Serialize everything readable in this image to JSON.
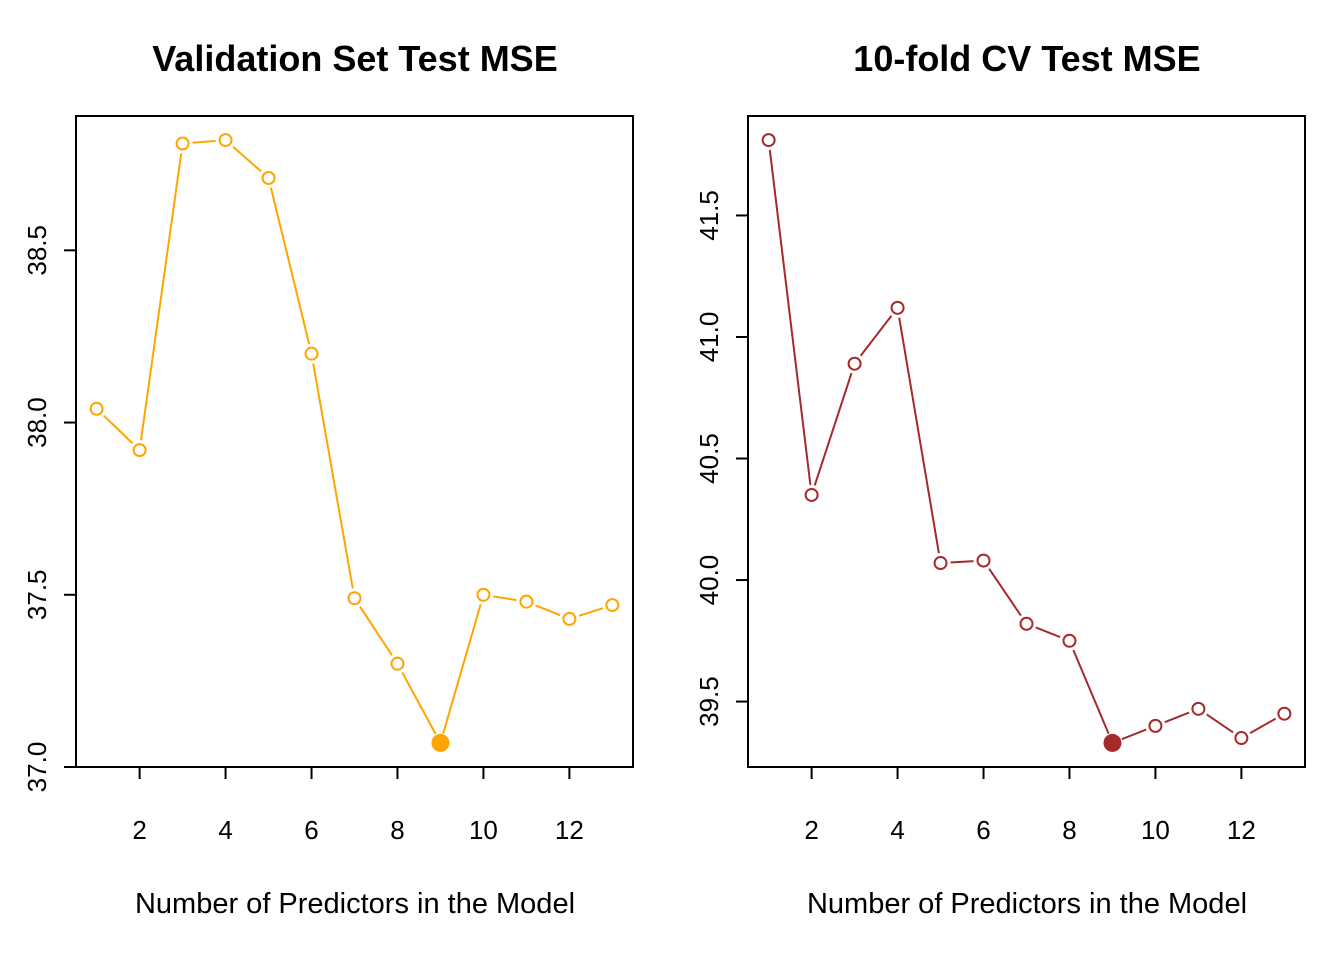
{
  "chart_data": [
    {
      "type": "line",
      "title": "Validation Set Test MSE",
      "xlabel": "Number of Predictors in the Model",
      "ylabel": "",
      "color": "#FFA500",
      "x": [
        1,
        2,
        3,
        4,
        5,
        6,
        7,
        8,
        9,
        10,
        11,
        12,
        13
      ],
      "values": [
        38.04,
        37.92,
        38.81,
        38.82,
        38.71,
        38.2,
        37.49,
        37.3,
        37.07,
        37.5,
        37.48,
        37.43,
        37.47
      ],
      "highlight_index": 8,
      "xlim": [
        1,
        13
      ],
      "ylim": [
        37.07,
        38.82
      ],
      "xticks": [
        2,
        4,
        6,
        8,
        10,
        12
      ],
      "xtick_labels": [
        "2",
        "4",
        "6",
        "8",
        "10",
        "12"
      ],
      "yticks": [
        37.0,
        37.5,
        38.0,
        38.5
      ],
      "ytick_labels": [
        "37.0",
        "37.5",
        "38.0",
        "38.5"
      ],
      "grid": false,
      "legend": "none"
    },
    {
      "type": "line",
      "title": "10-fold CV Test MSE",
      "xlabel": "Number of Predictors in the Model",
      "ylabel": "",
      "color": "#A52A2A",
      "x": [
        1,
        2,
        3,
        4,
        5,
        6,
        7,
        8,
        9,
        10,
        11,
        12,
        13
      ],
      "values": [
        41.81,
        40.35,
        40.89,
        41.12,
        40.07,
        40.08,
        39.82,
        39.75,
        39.33,
        39.4,
        39.47,
        39.35,
        39.45
      ],
      "highlight_index": 8,
      "xlim": [
        1,
        13
      ],
      "ylim": [
        39.33,
        41.81
      ],
      "xticks": [
        2,
        4,
        6,
        8,
        10,
        12
      ],
      "xtick_labels": [
        "2",
        "4",
        "6",
        "8",
        "10",
        "12"
      ],
      "yticks": [
        39.5,
        40.0,
        40.5,
        41.0,
        41.5
      ],
      "ytick_labels": [
        "39.5",
        "40.0",
        "40.5",
        "41.0",
        "41.5"
      ],
      "grid": false,
      "legend": "none"
    }
  ]
}
